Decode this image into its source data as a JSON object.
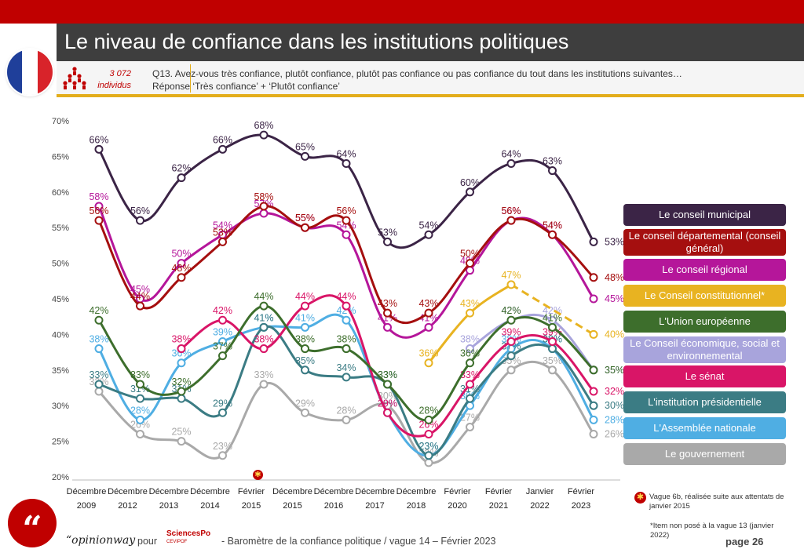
{
  "header": {
    "title": "Le niveau de confiance dans les institutions politiques",
    "sample_count": "3 072",
    "sample_unit": "individus",
    "question_line1": "Q13. Avez-vous très confiance, plutôt confiance, plutôt pas confiance ou pas confiance du tout dans les institutions suivantes…",
    "question_line2": "Réponse ‘Très confiance’ + ‘Plutôt confiance’"
  },
  "colors": {
    "brand_red": "#c00000",
    "accent_yellow": "#e3ad1b",
    "title_bar": "#3e3e3e"
  },
  "chart_data": {
    "type": "line",
    "y_ticks": [
      "20%",
      "25%",
      "30%",
      "35%",
      "40%",
      "45%",
      "50%",
      "55%",
      "60%",
      "65%",
      "70%"
    ],
    "ylim": [
      20,
      70
    ],
    "x_labels": [
      {
        "l1": "Décembre",
        "l2": "2009"
      },
      {
        "l1": "Décembre",
        "l2": "2012"
      },
      {
        "l1": "Décembre",
        "l2": "2013"
      },
      {
        "l1": "Décembre",
        "l2": "2014"
      },
      {
        "l1": "Février",
        "l2": "2015"
      },
      {
        "l1": "Décembre",
        "l2": "2015"
      },
      {
        "l1": "Décembre",
        "l2": "2016"
      },
      {
        "l1": "Décembre",
        "l2": "2017"
      },
      {
        "l1": "Décembre",
        "l2": "2018"
      },
      {
        "l1": "Février",
        "l2": "2020"
      },
      {
        "l1": "Février",
        "l2": "2021"
      },
      {
        "l1": "Janvier",
        "l2": "2022"
      },
      {
        "l1": "Février",
        "l2": "2023"
      }
    ],
    "grid": false,
    "legend_position": "right",
    "series": [
      {
        "name": "Le conseil municipal",
        "color": "#3b2446",
        "values": [
          66,
          56,
          62,
          66,
          68,
          65,
          64,
          53,
          54,
          60,
          64,
          63,
          53
        ]
      },
      {
        "name": "Le conseil départemental (conseil général)",
        "color": "#a50f0f",
        "values": [
          56,
          44,
          48,
          53,
          58,
          55,
          56,
          43,
          43,
          50,
          56,
          54,
          48
        ]
      },
      {
        "name": "Le conseil régional",
        "color": "#b5169a",
        "values": [
          58,
          45,
          50,
          54,
          57,
          55,
          54,
          41,
          41,
          49,
          56,
          54,
          45
        ]
      },
      {
        "name": "Le Conseil constitutionnel*",
        "color": "#e8b321",
        "values": [
          null,
          null,
          null,
          null,
          null,
          null,
          null,
          null,
          36,
          43,
          47,
          null,
          40
        ]
      },
      {
        "name": "L'Union européenne",
        "color": "#3d6e2c",
        "values": [
          42,
          33,
          32,
          37,
          44,
          38,
          38,
          33,
          28,
          36,
          42,
          41,
          35
        ]
      },
      {
        "name": "Le Conseil économique, social et environnemental",
        "color": "#a8a4dc",
        "values": [
          null,
          null,
          null,
          null,
          null,
          null,
          null,
          null,
          null,
          38,
          42,
          42,
          35
        ]
      },
      {
        "name": "Le sénat",
        "color": "#d91567",
        "values": [
          null,
          null,
          38,
          42,
          38,
          44,
          44,
          29,
          26,
          33,
          39,
          39,
          32
        ]
      },
      {
        "name": "L'institution présidentielle",
        "color": "#3b7c84",
        "values": [
          33,
          31,
          31,
          29,
          41,
          35,
          34,
          33,
          23,
          31,
          37,
          38,
          30
        ]
      },
      {
        "name": "L'Assemblée nationale",
        "color": "#4faee3",
        "values": [
          38,
          28,
          36,
          39,
          41,
          41,
          42,
          29,
          23,
          30,
          38,
          38,
          28
        ]
      },
      {
        "name": "Le gouvernement",
        "color": "#a9a9a9",
        "values": [
          32,
          26,
          25,
          23,
          33,
          29,
          28,
          30,
          22,
          27,
          35,
          35,
          26
        ]
      }
    ]
  },
  "notes": {
    "footnote_wave": "Vague 6b, réalisée suite aux attentats de janvier 2015",
    "footnote_item": "*Item non posé à la vague 13 (janvier 2022)"
  },
  "footer": {
    "brand": "“opinionway",
    "pour": "pour",
    "partner": "SciencesPo",
    "partner_sub": "CEVIPOF",
    "baro": "-  Baromètre de la confiance politique / vague 14 – Février 2023",
    "page": "page 26",
    "quote_mark": "“"
  }
}
